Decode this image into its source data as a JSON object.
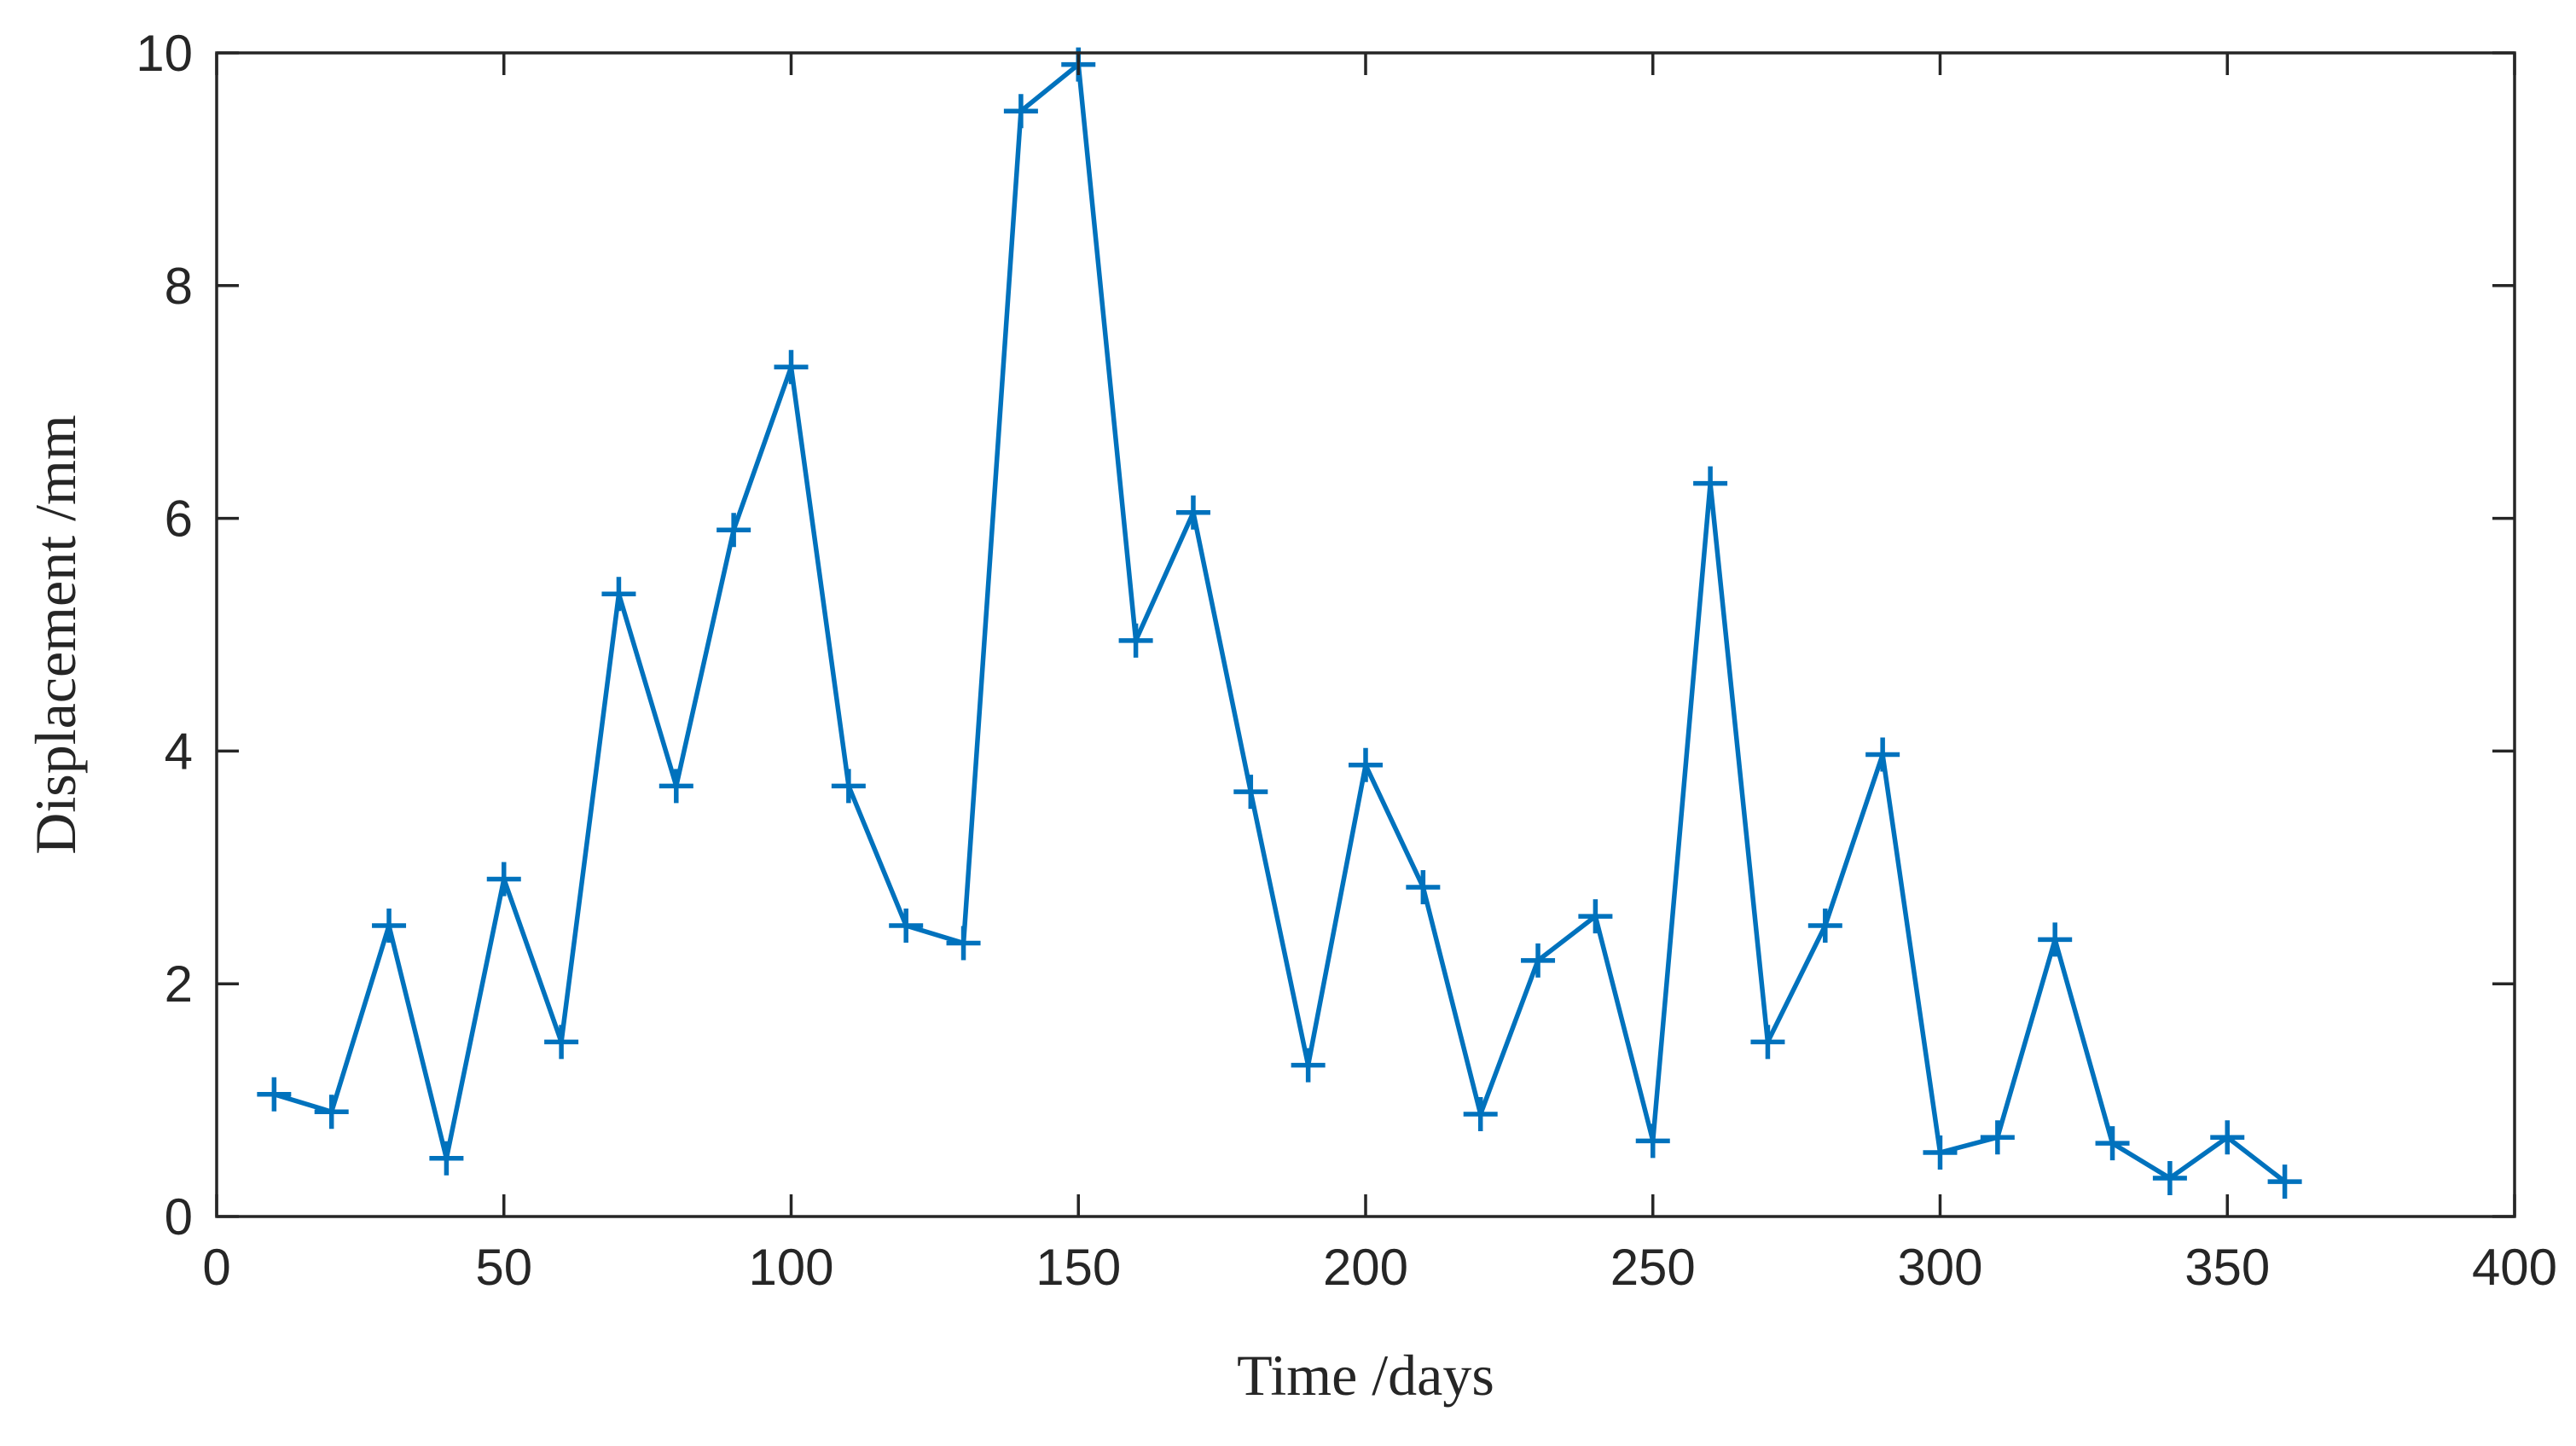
{
  "chart_data": {
    "type": "line",
    "title": "",
    "xlabel": "Time /days",
    "ylabel": "Displacement /mm",
    "xlim": [
      0,
      400
    ],
    "ylim": [
      0,
      10
    ],
    "xticks": [
      0,
      50,
      100,
      150,
      200,
      250,
      300,
      350,
      400
    ],
    "yticks": [
      0,
      2,
      4,
      6,
      8,
      10
    ],
    "grid": false,
    "marker": "plus",
    "series": [
      {
        "color": "#0072BD",
        "x": [
          10,
          20,
          30,
          40,
          50,
          60,
          70,
          80,
          90,
          100,
          110,
          120,
          130,
          140,
          150,
          160,
          170,
          180,
          190,
          200,
          210,
          220,
          230,
          240,
          250,
          260,
          270,
          280,
          290,
          300,
          310,
          320,
          330,
          340,
          350,
          360
        ],
        "y": [
          1.05,
          0.9,
          2.5,
          0.5,
          2.9,
          1.5,
          5.35,
          3.7,
          5.9,
          7.3,
          3.7,
          2.5,
          2.35,
          9.5,
          9.9,
          4.95,
          6.05,
          3.65,
          1.3,
          3.88,
          2.83,
          0.88,
          2.2,
          2.58,
          0.65,
          6.3,
          1.5,
          2.5,
          3.97,
          0.55,
          0.68,
          2.38,
          0.63,
          0.33,
          0.68,
          0.3
        ]
      }
    ]
  }
}
